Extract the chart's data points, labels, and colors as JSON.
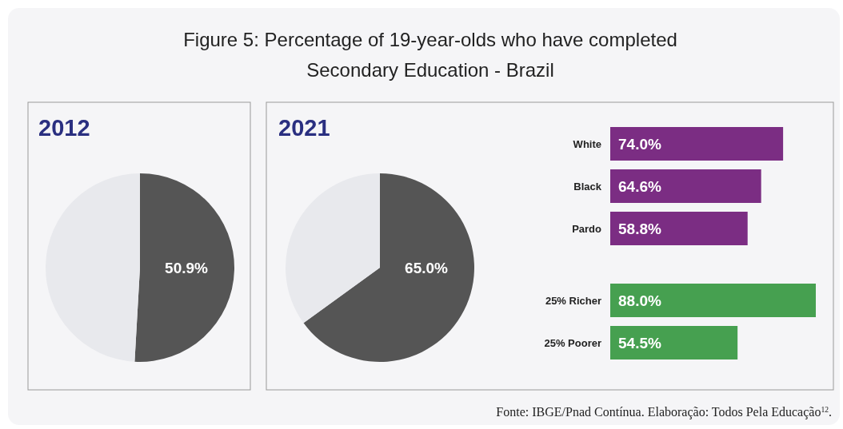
{
  "chart_data": [
    {
      "type": "pie",
      "title": "Figure 5: Percentage of 19-year-olds who have completed Secondary Education - Brazil",
      "subtitle": "2012",
      "categories": [
        null,
        null
      ],
      "values": [
        50.9,
        49.1
      ],
      "colors": [
        "#555555",
        "#e8e9ed"
      ],
      "value_labels": [
        "50.9%",
        null
      ]
    },
    {
      "type": "pie",
      "title": "2021",
      "categories": [
        null,
        null
      ],
      "values": [
        65.0,
        35.0
      ],
      "colors": [
        "#555555",
        "#e8e9ed"
      ],
      "value_labels": [
        "65.0%",
        null
      ]
    },
    {
      "type": "bar",
      "orientation": "horizontal",
      "categories": [
        "White",
        "Black",
        "Pardo"
      ],
      "values": [
        74.0,
        64.6,
        58.8
      ],
      "color": "#7b2d83",
      "value_labels": [
        "74.0%",
        "64.6%",
        "58.8%"
      ]
    },
    {
      "type": "bar",
      "orientation": "horizontal",
      "categories": [
        "25% Richer",
        "25% Poorer"
      ],
      "values": [
        88.0,
        54.5
      ],
      "color": "#46a050",
      "value_labels": [
        "88.0%",
        "54.5%"
      ],
      "annotations": [
        "Fonte: IBGE/Pnad Contínua. Elaboração: Todos Pela Educação$^{12}$."
      ]
    }
  ]
}
